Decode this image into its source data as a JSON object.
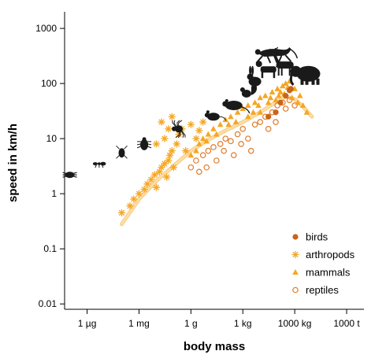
{
  "chart_data": {
    "type": "scatter",
    "xlabel": "body mass",
    "ylabel": "speed in km/h",
    "x_scale": "log",
    "y_scale": "log",
    "xlim": [
      "0.05 µg",
      "10000 t"
    ],
    "ylim": [
      0.008,
      2000
    ],
    "x_ticks": [
      "1 µg",
      "1 mg",
      "1 g",
      "1 kg",
      "1000 kg",
      "1000 t"
    ],
    "y_ticks": [
      "0.01",
      "0.1",
      "1",
      "10",
      "100",
      "1000"
    ],
    "grid": false,
    "legend_position": "bottom-right",
    "colors": {
      "birds": "#c8651b",
      "arthropods": "#f5a623",
      "mammals": "#f5a623",
      "reptiles": "#e07b2a",
      "fit_line": "#f8c46a",
      "silhouettes": "#1a1a1a"
    },
    "series": [
      {
        "name": "birds",
        "marker": "filled-circle",
        "points": [
          [
            "30 kg",
            25
          ],
          [
            "80 kg",
            30
          ],
          [
            "150 kg",
            45
          ],
          [
            "300 kg",
            60
          ],
          [
            "500 kg",
            75
          ],
          [
            "600 kg",
            80
          ]
        ]
      },
      {
        "name": "arthropods",
        "marker": "asterisk",
        "points": [
          [
            "0.1 mg",
            0.45
          ],
          [
            "0.3 mg",
            0.6
          ],
          [
            "0.5 mg",
            0.8
          ],
          [
            "1 mg",
            1.0
          ],
          [
            "2 mg",
            1.2
          ],
          [
            "3 mg",
            1.5
          ],
          [
            "5 mg",
            1.8
          ],
          [
            "8 mg",
            2.2
          ],
          [
            "10 mg",
            1.3
          ],
          [
            "15 mg",
            2.5
          ],
          [
            "20 mg",
            3.0
          ],
          [
            "30 mg",
            3.5
          ],
          [
            "40 mg",
            2.0
          ],
          [
            "50 mg",
            4.0
          ],
          [
            "60 mg",
            5.0
          ],
          [
            "80 mg",
            6.0
          ],
          [
            "0.1 g",
            3.0
          ],
          [
            "0.15 g",
            8.0
          ],
          [
            "0.2 g",
            12
          ],
          [
            "0.3 g",
            15
          ],
          [
            "0.5 g",
            6
          ],
          [
            "1 g",
            18
          ],
          [
            "2 g",
            10
          ],
          [
            "3 g",
            14
          ],
          [
            "5 g",
            20
          ],
          [
            "0.08 g",
            25
          ],
          [
            "0.05 g",
            15
          ],
          [
            "0.03 g",
            10
          ],
          [
            "0.02 g",
            20
          ],
          [
            "0.01 g",
            8
          ]
        ]
      },
      {
        "name": "mammals",
        "marker": "triangle",
        "points": [
          [
            "1 g",
            5
          ],
          [
            "3 g",
            8
          ],
          [
            "5 g",
            10
          ],
          [
            "10 g",
            12
          ],
          [
            "20 g",
            15
          ],
          [
            "50 g",
            18
          ],
          [
            "100 g",
            22
          ],
          [
            "200 g",
            25
          ],
          [
            "500 g",
            30
          ],
          [
            "1 kg",
            35
          ],
          [
            "2 kg",
            40
          ],
          [
            "5 kg",
            45
          ],
          [
            "10 kg",
            55
          ],
          [
            "20 kg",
            60
          ],
          [
            "50 kg",
            70
          ],
          [
            "100 kg",
            80
          ],
          [
            "200 kg",
            90
          ],
          [
            "300 kg",
            100
          ],
          [
            "500 kg",
            110
          ],
          [
            "1000 kg",
            80
          ],
          [
            "2000 kg",
            60
          ],
          [
            "3000 kg",
            40
          ],
          [
            "5000 kg",
            30
          ],
          [
            "10 kg",
            30
          ],
          [
            "30 kg",
            45
          ],
          [
            "80 kg",
            50
          ],
          [
            "150 kg",
            70
          ],
          [
            "250 kg",
            65
          ],
          [
            "400 kg",
            85
          ],
          [
            "700 kg",
            55
          ],
          [
            "1500 kg",
            45
          ],
          [
            "2 g",
            6
          ],
          [
            "8 g",
            9
          ],
          [
            "30 g",
            12
          ],
          [
            "150 g",
            18
          ],
          [
            "400 g",
            20
          ],
          [
            "2 kg",
            25
          ],
          [
            "4 kg",
            30
          ],
          [
            "8 kg",
            40
          ],
          [
            "40 kg",
            55
          ],
          [
            "120 kg",
            60
          ]
        ]
      },
      {
        "name": "reptiles",
        "marker": "open-circle",
        "points": [
          [
            "1 g",
            3
          ],
          [
            "2 g",
            4
          ],
          [
            "5 g",
            5
          ],
          [
            "10 g",
            6
          ],
          [
            "20 g",
            7
          ],
          [
            "50 g",
            8
          ],
          [
            "100 g",
            10
          ],
          [
            "200 g",
            9
          ],
          [
            "500 g",
            12
          ],
          [
            "1 kg",
            15
          ],
          [
            "2 kg",
            10
          ],
          [
            "5 kg",
            18
          ],
          [
            "10 kg",
            20
          ],
          [
            "20 kg",
            25
          ],
          [
            "50 kg",
            30
          ],
          [
            "100 kg",
            40
          ],
          [
            "200 kg",
            45
          ],
          [
            "500 kg",
            50
          ],
          [
            "1000 kg",
            40
          ],
          [
            "3 g",
            2.5
          ],
          [
            "8 g",
            3
          ],
          [
            "30 g",
            4
          ],
          [
            "80 g",
            6
          ],
          [
            "300 g",
            5
          ],
          [
            "800 g",
            8
          ],
          [
            "3 kg",
            6
          ],
          [
            "30 kg",
            15
          ],
          [
            "80 kg",
            20
          ],
          [
            "300 kg",
            35
          ]
        ]
      }
    ],
    "fit_curve": [
      [
        "0.1 mg",
        0.28
      ],
      [
        "1 mg",
        0.8
      ],
      [
        "10 mg",
        1.7
      ],
      [
        "0.1 g",
        3.2
      ],
      [
        "1 g",
        6
      ],
      [
        "10 g",
        9.5
      ],
      [
        "100 g",
        14
      ],
      [
        "1 kg",
        20
      ],
      [
        "10 kg",
        30
      ],
      [
        "100 kg",
        48
      ],
      [
        "300 kg",
        58
      ],
      [
        "1000 kg",
        52
      ],
      [
        "3000 kg",
        38
      ],
      [
        "10000 kg",
        25
      ]
    ],
    "silhouettes": [
      {
        "icon": "mite-icon",
        "x": "0.1 µg",
        "y": 2.2
      },
      {
        "icon": "ant-icon",
        "x": "5 µg",
        "y": 3.5
      },
      {
        "icon": "fly-icon",
        "x": "0.1 mg",
        "y": 5.5
      },
      {
        "icon": "beetle-icon",
        "x": "2 mg",
        "y": 8
      },
      {
        "icon": "spider-icon",
        "x": "0.2 g",
        "y": 15
      },
      {
        "icon": "mouse-icon",
        "x": "20 g",
        "y": 25
      },
      {
        "icon": "rat-icon",
        "x": "300 g",
        "y": 40
      },
      {
        "icon": "squirrel-icon",
        "x": "2 kg",
        "y": 70
      },
      {
        "icon": "rabbit-icon",
        "x": "5 kg",
        "y": 120
      },
      {
        "icon": "dog-icon",
        "x": "30 kg",
        "y": 180
      },
      {
        "icon": "cheetah-icon",
        "x": "60 kg",
        "y": 350
      },
      {
        "icon": "deer-icon",
        "x": "300 kg",
        "y": 220
      },
      {
        "icon": "elephant-icon",
        "x": "5000 kg",
        "y": 150
      }
    ]
  },
  "legend": [
    {
      "label": "birds",
      "marker": "filled-circle",
      "color": "#c8651b"
    },
    {
      "label": "arthropods",
      "marker": "asterisk",
      "color": "#f5a623"
    },
    {
      "label": "mammals",
      "marker": "triangle",
      "color": "#f5a623"
    },
    {
      "label": "reptiles",
      "marker": "open-circle",
      "color": "#e07b2a"
    }
  ]
}
